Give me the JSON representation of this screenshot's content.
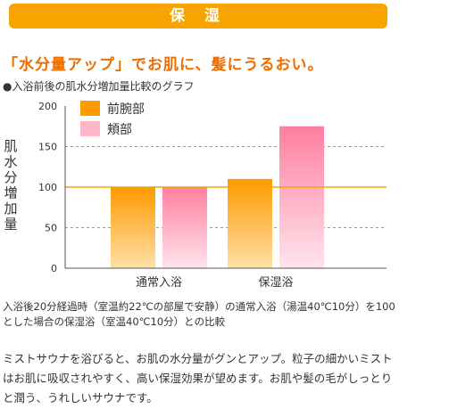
{
  "header": {
    "title": "保 湿"
  },
  "headline": "「水分量アップ」でお肌に、髪にうるおい。",
  "subtitle": "●入浴前後の肌水分増加量比較のグラフ",
  "chart_data": {
    "type": "bar",
    "categories": [
      "通常入浴",
      "保湿浴"
    ],
    "series": [
      {
        "name": "前腕部",
        "values": [
          100,
          110
        ]
      },
      {
        "name": "頬部",
        "values": [
          100,
          175
        ]
      }
    ],
    "ylabel": "肌水分増加量",
    "ylim": [
      0,
      200
    ],
    "yticks": [
      0,
      50,
      100,
      150,
      200
    ],
    "grid": true,
    "legend": "top-left",
    "reference_line": 100,
    "colors": {
      "series_0_top": "#ff9a00",
      "series_0_bottom": "#ffe0a8",
      "series_1_top": "#ff7fa0",
      "series_1_bottom": "#ffe4ec",
      "reference_line": "#f7a400",
      "grid": "#999999",
      "axis": "#555555"
    }
  },
  "note": "入浴後20分経過時（室温約22℃の部屋で安静）の通常入浴（湯温40℃10分）を100とした場合の保湿浴（室温40℃10分）との比較",
  "description": "ミストサウナを浴びると、お肌の水分量がグンとアップ。粒子の細かいミストはお肌に吸収されやすく、高い保湿効果が望めます。お肌や髪の毛がしっとりと潤う、うれしいサウナです。"
}
